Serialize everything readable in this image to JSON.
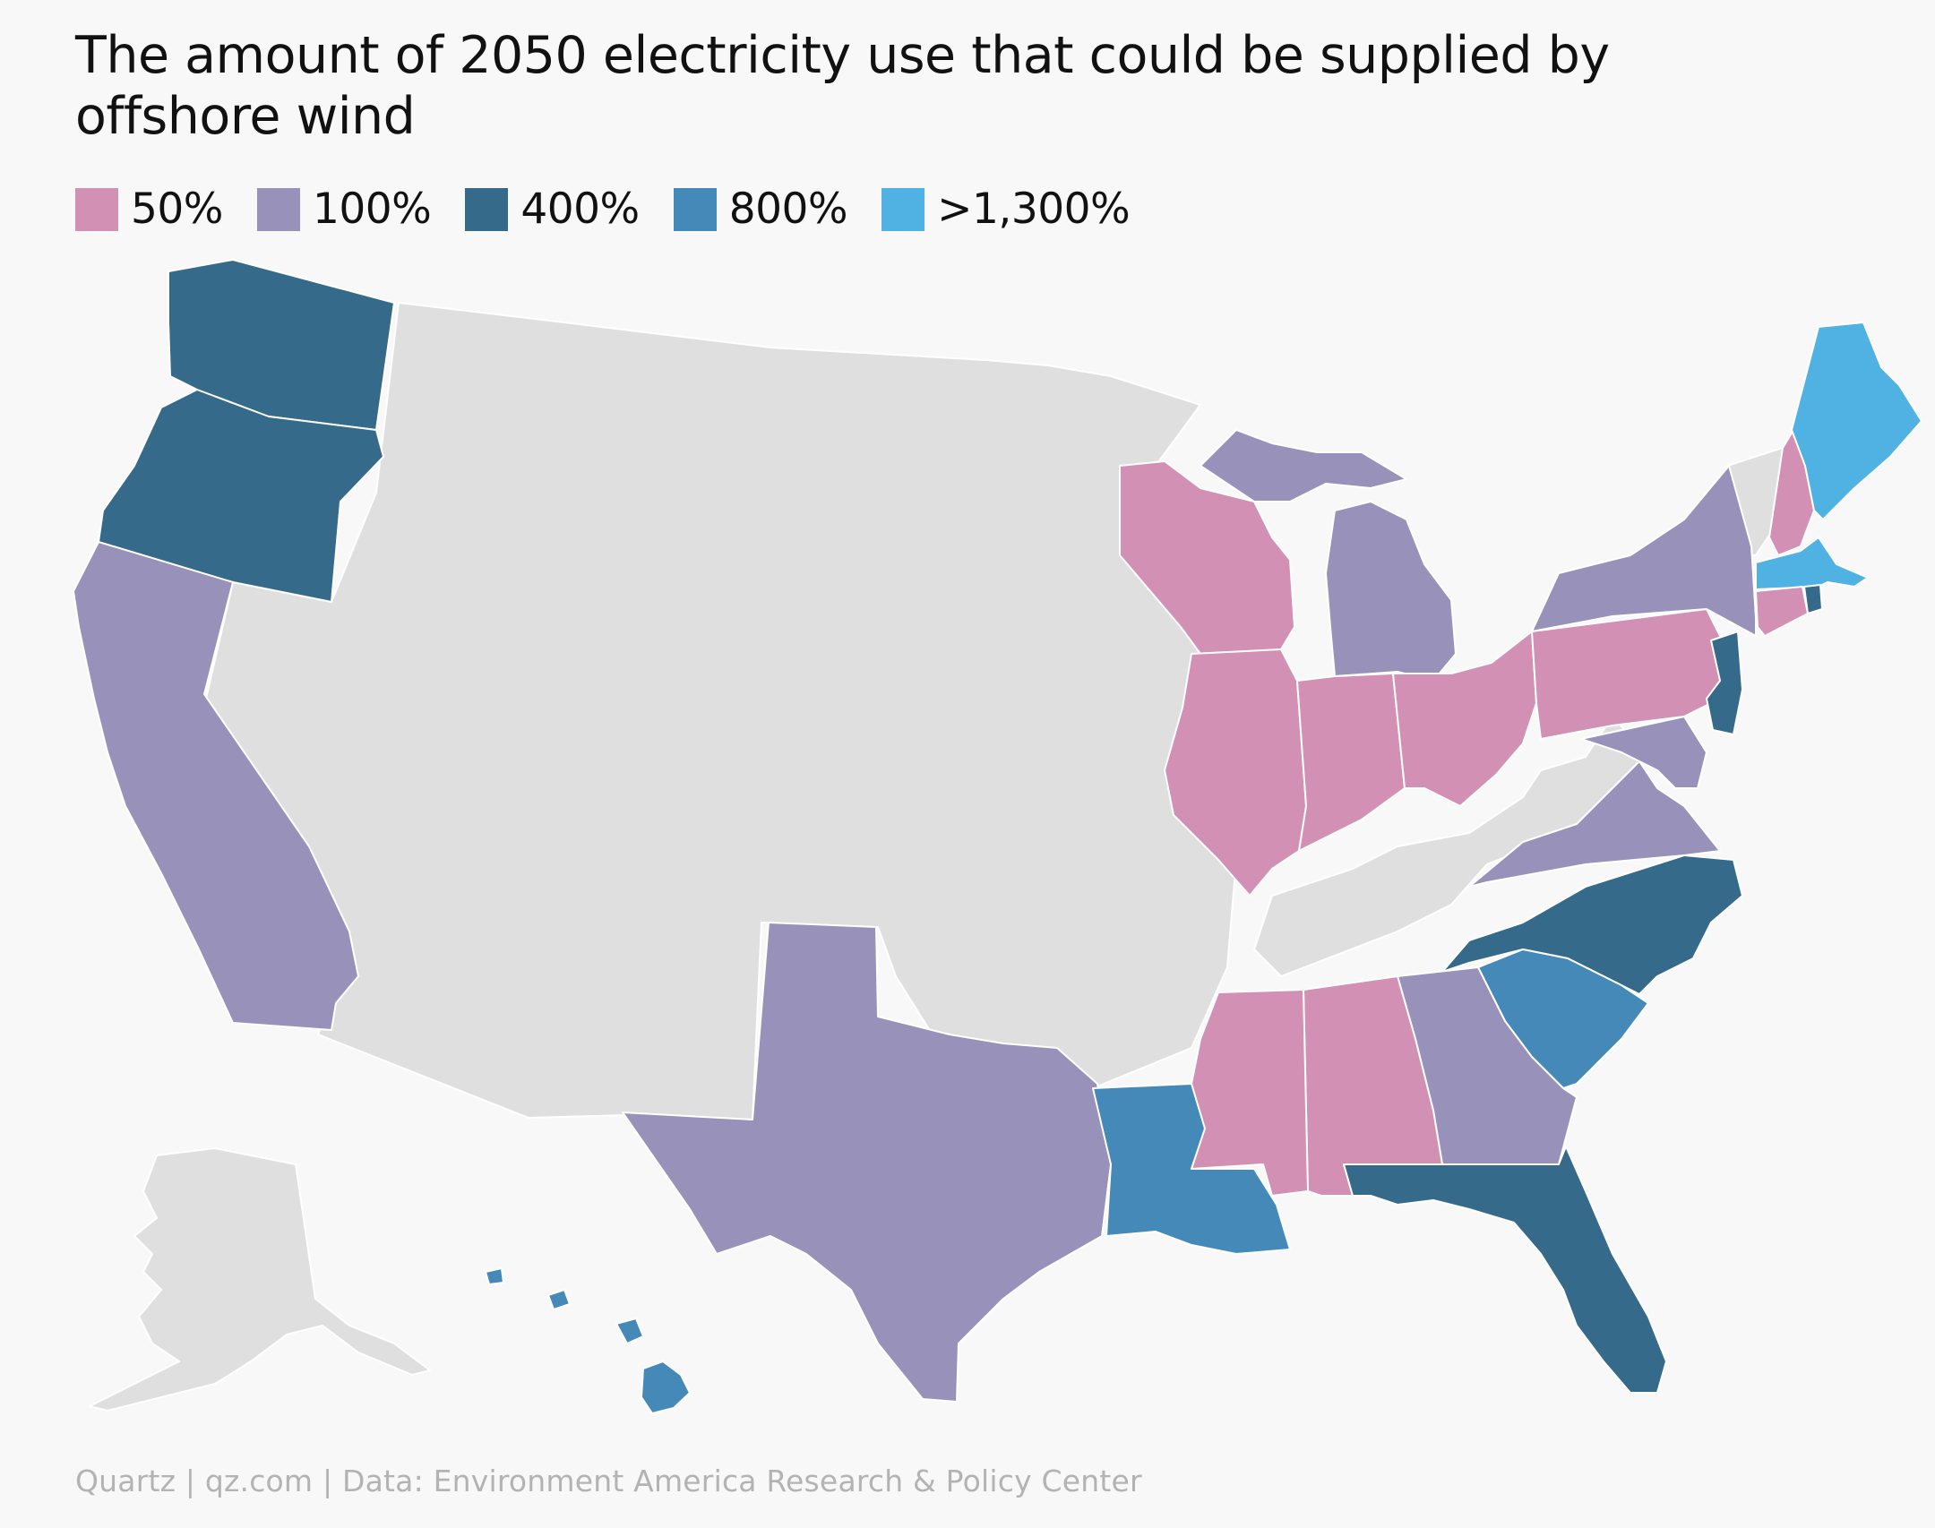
{
  "title": "The amount of 2050 electricity use that could be supplied by offshore wind",
  "legend": [
    {
      "label": "50%",
      "color": "#d291b4"
    },
    {
      "label": "100%",
      "color": "#9891ba"
    },
    {
      "label": "400%",
      "color": "#366a8a"
    },
    {
      "label": "800%",
      "color": "#4589b8"
    },
    {
      "label": ">1,300%",
      "color": "#50b1e3"
    }
  ],
  "no_data_color": "#dfdfdf",
  "source": "Quartz | qz.com | Data: Environment America Research & Policy Center"
}
